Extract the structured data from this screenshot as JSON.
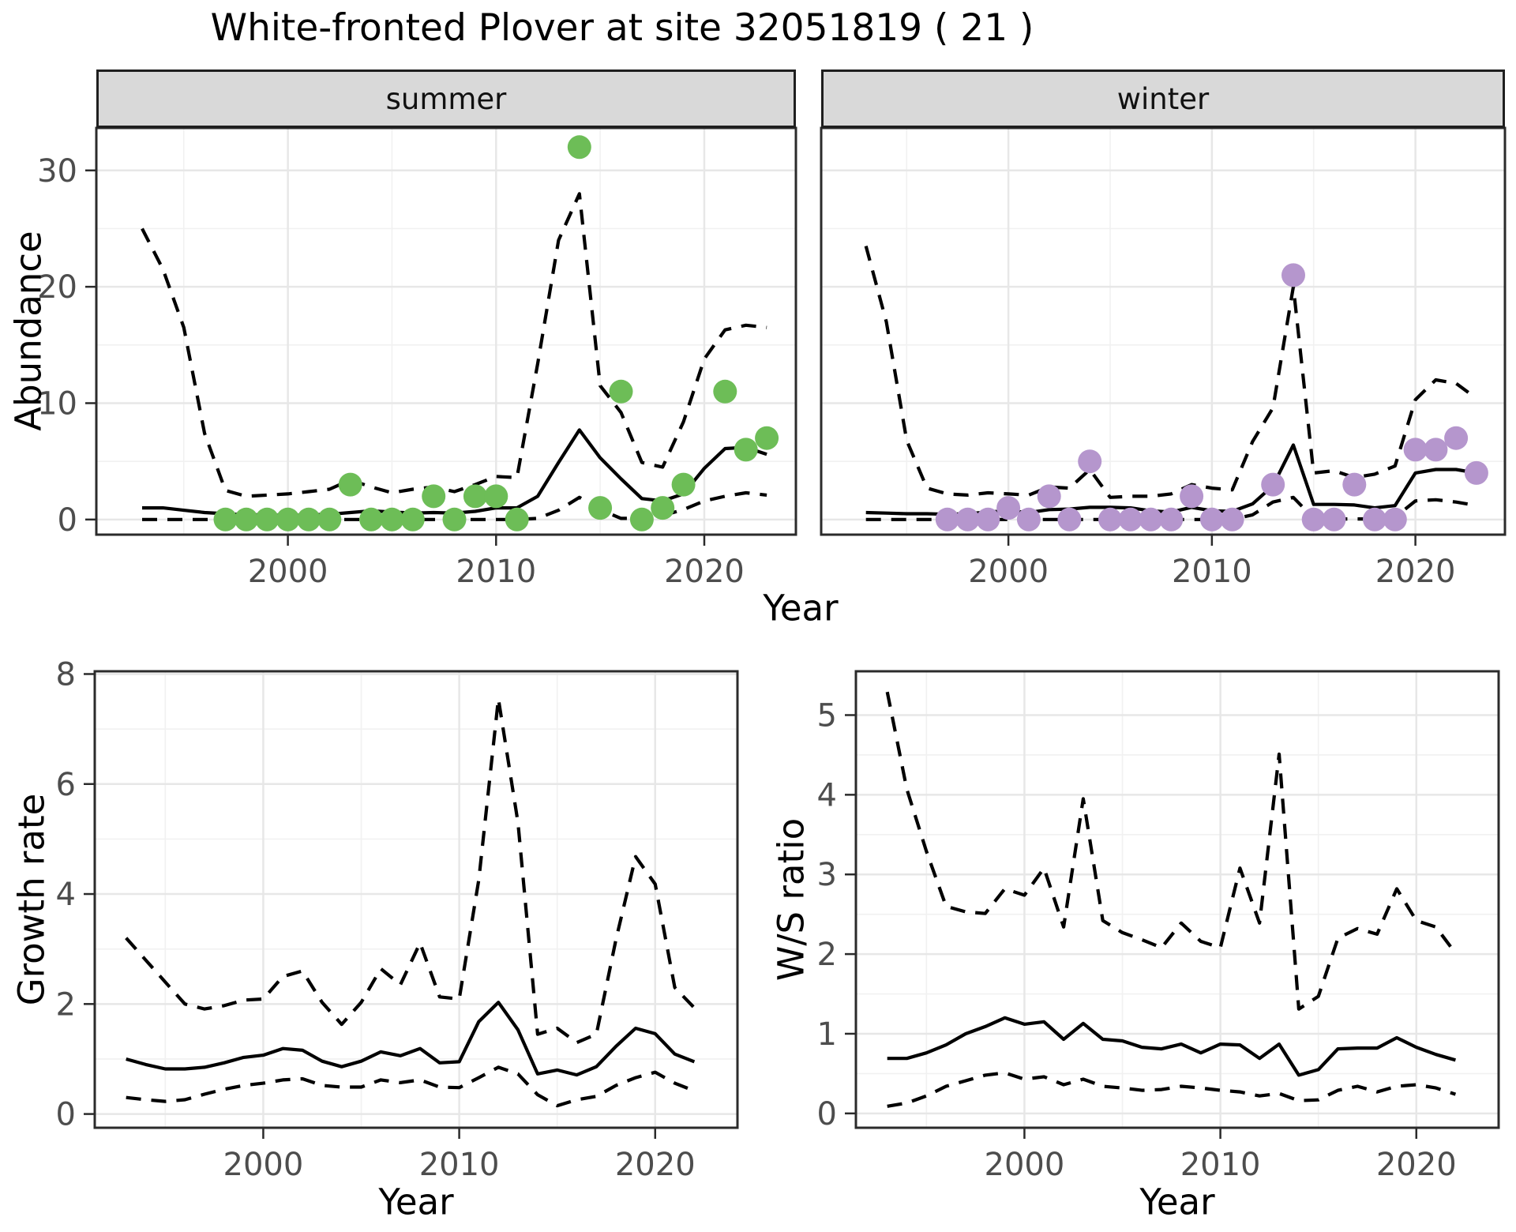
{
  "title": "White-fronted Plover at site 32051819 ( 21 )",
  "colors": {
    "summer_point": "#6dbd57",
    "winter_point": "#b596cd",
    "line": "#000000",
    "strip_background": "#d9d9d9",
    "gridline": "#e7e7e7",
    "axis_text": "#4d4d4d"
  },
  "chart_data": [
    {
      "id": "abundance_summer",
      "type": "line",
      "facet_label": "summer",
      "xlabel": "Year",
      "ylabel": "Abundance",
      "xlim": [
        1990.8,
        2024.4
      ],
      "ylim": [
        -1.3,
        33.65
      ],
      "xticks": [
        2000,
        2010,
        2020
      ],
      "xticks_minor": [
        1995,
        2005,
        2015
      ],
      "yticks": [
        0,
        10,
        20,
        30
      ],
      "yticks_minor": [
        5,
        15,
        25
      ],
      "y_axis": true,
      "legend": "off",
      "years": [
        1993,
        1994,
        1995,
        1996,
        1997,
        1998,
        1999,
        2000,
        2001,
        2002,
        2003,
        2004,
        2005,
        2006,
        2007,
        2008,
        2009,
        2010,
        2011,
        2012,
        2013,
        2014,
        2015,
        2016,
        2017,
        2018,
        2019,
        2020,
        2021,
        2022,
        2023
      ],
      "series": [
        {
          "name": "upper_95_ci",
          "style": "dashed",
          "values": [
            25,
            21.5,
            16.5,
            7.4,
            2.5,
            2.0,
            2.1,
            2.2,
            2.4,
            2.6,
            3.4,
            2.8,
            2.3,
            2.6,
            2.8,
            2.4,
            3.0,
            3.7,
            3.6,
            13.4,
            24.0,
            28.0,
            11.5,
            9.2,
            4.9,
            4.5,
            8.4,
            13.8,
            16.3,
            16.7,
            16.5
          ]
        },
        {
          "name": "lower_95_ci",
          "style": "dashed",
          "values": [
            0,
            0,
            0,
            0,
            0,
            0,
            0,
            0,
            0,
            0,
            0,
            0,
            0,
            0,
            0,
            0,
            0,
            0,
            0,
            0.1,
            0.8,
            1.9,
            0.85,
            0.1,
            0.1,
            0.35,
            0.85,
            1.6,
            2.0,
            2.3,
            2.1
          ]
        },
        {
          "name": "modelled_mean",
          "style": "solid",
          "values": [
            1.0,
            1.0,
            0.8,
            0.6,
            0.5,
            0.4,
            0.4,
            0.35,
            0.4,
            0.45,
            0.6,
            0.75,
            0.65,
            0.55,
            0.6,
            0.55,
            0.7,
            1.0,
            1.0,
            2.0,
            4.9,
            7.7,
            5.3,
            3.5,
            1.8,
            1.6,
            2.2,
            4.4,
            6.1,
            6.2,
            5.6
          ]
        }
      ],
      "points": {
        "name": "observed_counts_summer",
        "color": "#6dbd57",
        "years": [
          1997,
          1998,
          1999,
          2000,
          2001,
          2002,
          2003,
          2004,
          2005,
          2006,
          2007,
          2008,
          2009,
          2010,
          2011,
          2014,
          2015,
          2016,
          2017,
          2018,
          2019,
          2021,
          2022,
          2023
        ],
        "values": [
          0,
          0,
          0,
          0,
          0,
          0,
          3,
          0,
          0,
          0,
          2,
          0,
          2,
          2,
          0,
          32,
          1,
          11,
          0,
          1,
          3,
          11,
          6,
          7
        ]
      }
    },
    {
      "id": "abundance_winter",
      "type": "line",
      "facet_label": "winter",
      "xlabel": "Year",
      "ylabel": "Abundance",
      "xlim": [
        1990.8,
        2024.4
      ],
      "ylim": [
        -1.3,
        33.65
      ],
      "xticks": [
        2000,
        2010,
        2020
      ],
      "xticks_minor": [
        1995,
        2005,
        2015
      ],
      "yticks": [
        0,
        10,
        20,
        30
      ],
      "yticks_minor": [
        5,
        15,
        25
      ],
      "y_axis": false,
      "legend": "off",
      "years": [
        1993,
        1994,
        1995,
        1996,
        1997,
        1998,
        1999,
        2000,
        2001,
        2002,
        2003,
        2004,
        2005,
        2006,
        2007,
        2008,
        2009,
        2010,
        2011,
        2012,
        2013,
        2014,
        2015,
        2016,
        2017,
        2018,
        2019,
        2020,
        2021,
        2022,
        2023
      ],
      "series": [
        {
          "name": "upper_95_ci",
          "style": "dashed",
          "values": [
            23.5,
            17.0,
            6.8,
            2.7,
            2.2,
            2.1,
            2.3,
            2.2,
            2.1,
            2.8,
            2.7,
            4.3,
            1.9,
            2.0,
            2.0,
            2.2,
            3.0,
            2.7,
            2.55,
            6.7,
            9.6,
            20.0,
            4.0,
            4.2,
            3.6,
            3.9,
            4.6,
            10.3,
            12.0,
            11.7,
            10.4
          ]
        },
        {
          "name": "lower_95_ci",
          "style": "dashed",
          "values": [
            0,
            0,
            0,
            0,
            0,
            0,
            0,
            0,
            0,
            0,
            0,
            0,
            0,
            0,
            0,
            0,
            0,
            0,
            0,
            0.4,
            1.5,
            1.9,
            0.1,
            0.05,
            0.05,
            0.05,
            0.2,
            1.6,
            1.7,
            1.5,
            1.2
          ]
        },
        {
          "name": "modelled_mean",
          "style": "solid",
          "values": [
            0.6,
            0.55,
            0.5,
            0.5,
            0.45,
            0.5,
            0.65,
            0.75,
            0.6,
            0.85,
            0.9,
            1.05,
            1.05,
            1.0,
            0.75,
            0.65,
            1.05,
            0.75,
            0.7,
            1.35,
            2.9,
            6.4,
            1.3,
            1.3,
            1.25,
            1.0,
            1.2,
            4.0,
            4.3,
            4.3,
            4.0
          ]
        }
      ],
      "points": {
        "name": "observed_counts_winter",
        "color": "#b596cd",
        "years": [
          1997,
          1998,
          1999,
          2000,
          2001,
          2002,
          2003,
          2004,
          2005,
          2006,
          2007,
          2008,
          2009,
          2010,
          2011,
          2013,
          2014,
          2015,
          2016,
          2017,
          2018,
          2019,
          2020,
          2021,
          2022,
          2023
        ],
        "values": [
          0,
          0,
          0,
          1,
          0,
          2,
          0,
          5,
          0,
          0,
          0,
          0,
          2,
          0,
          0,
          3,
          21,
          0,
          0,
          3,
          0,
          0,
          6,
          6,
          7,
          4
        ]
      }
    },
    {
      "id": "growth_rate",
      "type": "line",
      "facet_label": "",
      "xlabel": "Year",
      "ylabel": "Growth rate",
      "xlim": [
        1991.4,
        2024.2
      ],
      "ylim": [
        -0.25,
        8.05
      ],
      "xticks": [
        2000,
        2010,
        2020
      ],
      "xticks_minor": [
        1995,
        2005,
        2015
      ],
      "yticks": [
        0,
        2,
        4,
        6,
        8
      ],
      "yticks_minor": [
        1,
        3,
        5,
        7
      ],
      "y_axis": true,
      "legend": "off",
      "years": [
        1993,
        1994,
        1995,
        1996,
        1997,
        1998,
        1999,
        2000,
        2001,
        2002,
        2003,
        2004,
        2005,
        2006,
        2007,
        2008,
        2009,
        2010,
        2011,
        2012,
        2013,
        2014,
        2015,
        2016,
        2017,
        2018,
        2019,
        2020,
        2021,
        2022
      ],
      "series": [
        {
          "name": "upper_95_ci",
          "style": "dashed",
          "values": [
            3.2,
            2.8,
            2.4,
            2.0,
            1.91,
            1.97,
            2.07,
            2.09,
            2.5,
            2.6,
            2.03,
            1.63,
            2.03,
            2.64,
            2.35,
            3.11,
            2.13,
            2.09,
            4.26,
            7.55,
            5.3,
            1.45,
            1.56,
            1.3,
            1.45,
            3.17,
            4.68,
            4.18,
            2.3,
            1.93
          ]
        },
        {
          "name": "lower_95_ci",
          "style": "dashed",
          "values": [
            0.3,
            0.26,
            0.23,
            0.26,
            0.36,
            0.45,
            0.52,
            0.56,
            0.62,
            0.64,
            0.52,
            0.49,
            0.49,
            0.62,
            0.57,
            0.62,
            0.49,
            0.48,
            0.66,
            0.85,
            0.73,
            0.35,
            0.15,
            0.26,
            0.32,
            0.52,
            0.66,
            0.76,
            0.56,
            0.42
          ]
        },
        {
          "name": "modelled_mean",
          "style": "solid",
          "values": [
            1.0,
            0.9,
            0.82,
            0.82,
            0.85,
            0.93,
            1.03,
            1.07,
            1.19,
            1.16,
            0.96,
            0.86,
            0.96,
            1.13,
            1.06,
            1.19,
            0.93,
            0.95,
            1.68,
            2.03,
            1.53,
            0.73,
            0.8,
            0.71,
            0.86,
            1.23,
            1.56,
            1.46,
            1.09,
            0.95
          ]
        }
      ],
      "points": null
    },
    {
      "id": "ws_ratio",
      "type": "line",
      "facet_label": "",
      "xlabel": "Year",
      "ylabel": "W/S ratio",
      "xlim": [
        1991.4,
        2024.2
      ],
      "ylim": [
        -0.18,
        5.55
      ],
      "xticks": [
        2000,
        2010,
        2020
      ],
      "xticks_minor": [
        1995,
        2005,
        2015
      ],
      "yticks": [
        0,
        1,
        2,
        3,
        4,
        5
      ],
      "yticks_minor": [
        0.5,
        1.5,
        2.5,
        3.5,
        4.5
      ],
      "y_axis": true,
      "legend": "off",
      "years": [
        1993,
        1994,
        1995,
        1996,
        1997,
        1998,
        1999,
        2000,
        2001,
        2002,
        2003,
        2004,
        2005,
        2006,
        2007,
        2008,
        2009,
        2010,
        2011,
        2012,
        2013,
        2014,
        2015,
        2016,
        2017,
        2018,
        2019,
        2020,
        2021,
        2022
      ],
      "series": [
        {
          "name": "upper_95_ci",
          "style": "dashed",
          "values": [
            5.29,
            4.07,
            3.29,
            2.6,
            2.53,
            2.51,
            2.82,
            2.74,
            3.08,
            2.34,
            3.95,
            2.42,
            2.27,
            2.18,
            2.08,
            2.39,
            2.16,
            2.08,
            3.08,
            2.39,
            4.51,
            1.31,
            1.47,
            2.2,
            2.32,
            2.25,
            2.82,
            2.42,
            2.34,
            2.01
          ]
        },
        {
          "name": "lower_95_ci",
          "style": "dashed",
          "values": [
            0.09,
            0.13,
            0.22,
            0.34,
            0.41,
            0.48,
            0.51,
            0.43,
            0.46,
            0.36,
            0.43,
            0.34,
            0.32,
            0.29,
            0.3,
            0.34,
            0.32,
            0.29,
            0.27,
            0.22,
            0.25,
            0.16,
            0.17,
            0.29,
            0.34,
            0.27,
            0.34,
            0.36,
            0.32,
            0.24
          ]
        },
        {
          "name": "modelled_mean",
          "style": "solid",
          "values": [
            0.69,
            0.69,
            0.76,
            0.86,
            1.0,
            1.09,
            1.2,
            1.12,
            1.15,
            0.93,
            1.13,
            0.93,
            0.91,
            0.83,
            0.81,
            0.87,
            0.76,
            0.87,
            0.86,
            0.69,
            0.87,
            0.48,
            0.55,
            0.81,
            0.82,
            0.82,
            0.95,
            0.83,
            0.74,
            0.67
          ]
        }
      ],
      "points": null
    }
  ]
}
